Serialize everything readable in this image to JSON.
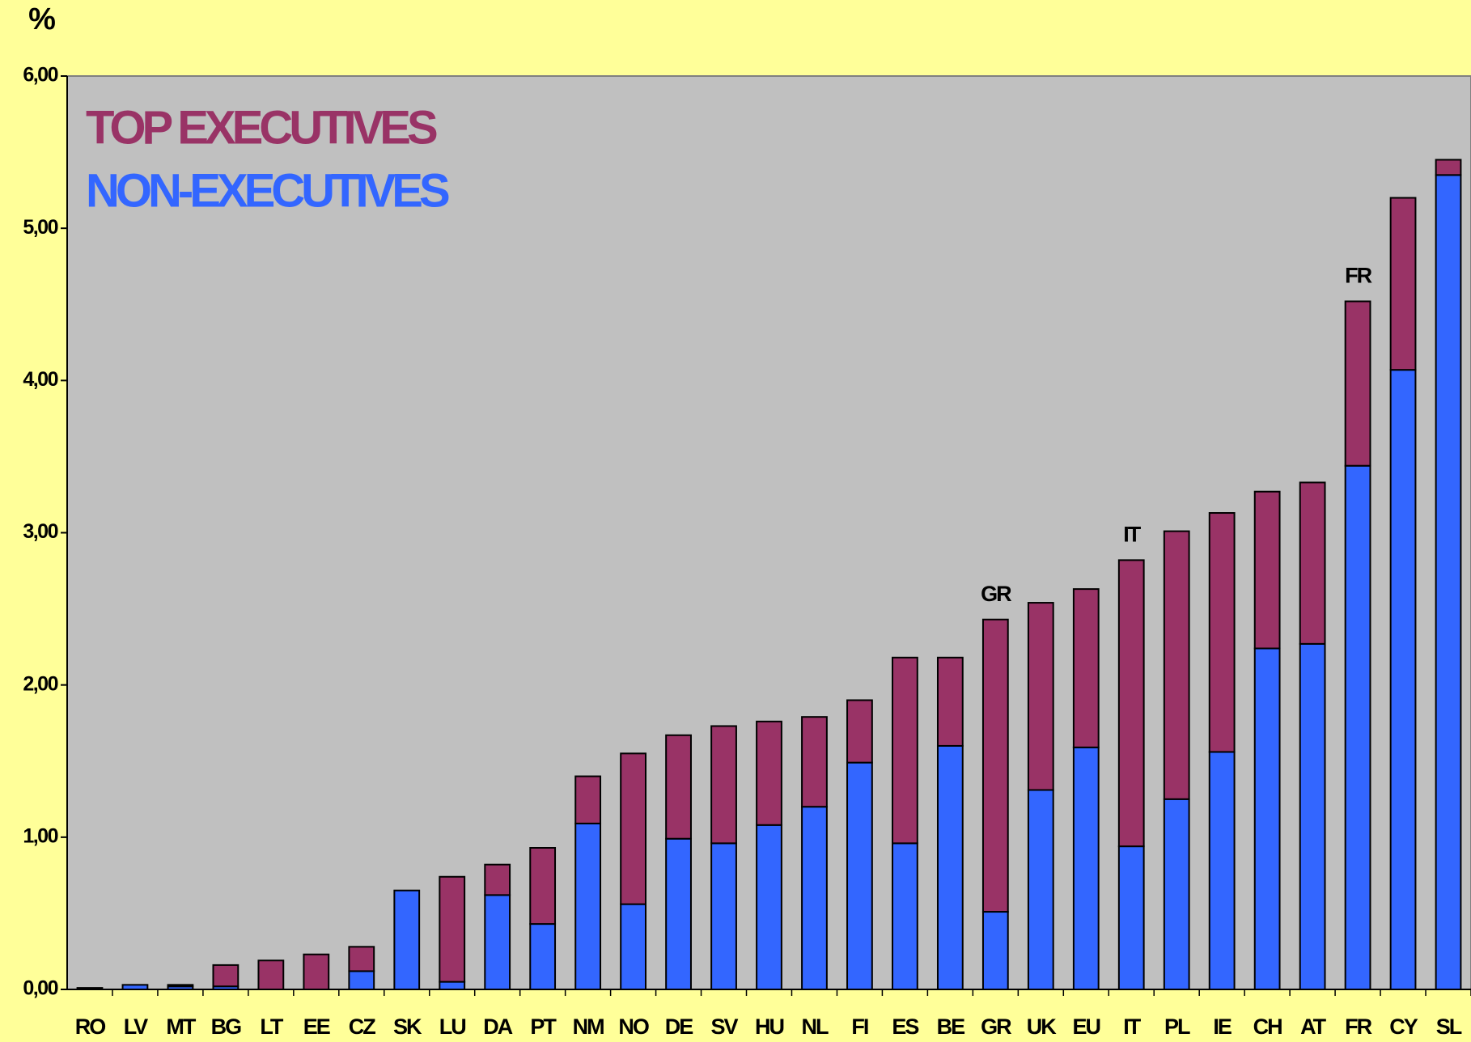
{
  "chart_data": {
    "type": "stacked-bar",
    "y_label": "%",
    "categories": [
      "RO",
      "LV",
      "MT",
      "BG",
      "LT",
      "EE",
      "CZ",
      "SK",
      "LU",
      "DA",
      "PT",
      "NM",
      "NO",
      "DE",
      "SV",
      "HU",
      "NL",
      "FI",
      "ES",
      "BE",
      "GR",
      "UK",
      "EU",
      "IT",
      "PL",
      "IE",
      "CH",
      "AT",
      "FR",
      "CY",
      "SL"
    ],
    "series": [
      {
        "name": "NON-EXECUTIVES",
        "color": "#3366ff",
        "values": [
          0,
          0.03,
          0.02,
          0.02,
          0,
          0,
          0.12,
          0.65,
          0.05,
          0.62,
          0.43,
          1.09,
          0.56,
          0.99,
          0.96,
          1.08,
          1.2,
          1.49,
          0.96,
          1.6,
          0.51,
          1.31,
          1.59,
          0.94,
          1.25,
          1.56,
          2.24,
          2.27,
          3.44,
          4.07,
          5.35
        ]
      },
      {
        "name": "TOP EXECUTIVES",
        "color": "#993366",
        "values": [
          0.01,
          0,
          0.01,
          0.14,
          0.19,
          0.23,
          0.16,
          0,
          0.69,
          0.2,
          0.5,
          0.31,
          0.99,
          0.68,
          0.77,
          0.68,
          0.59,
          0.41,
          1.22,
          0.58,
          1.92,
          1.23,
          1.04,
          1.88,
          1.76,
          1.57,
          1.03,
          1.06,
          1.08,
          1.13,
          0.1
        ]
      }
    ],
    "annotations": [
      "GR",
      "IT",
      "FR"
    ],
    "ylim": [
      0,
      6
    ],
    "yticks": [
      {
        "value": 0,
        "label": "0,00"
      },
      {
        "value": 1,
        "label": "1,00"
      },
      {
        "value": 2,
        "label": "2,00"
      },
      {
        "value": 3,
        "label": "3,00"
      },
      {
        "value": 4,
        "label": "4,00"
      },
      {
        "value": 5,
        "label": "5,00"
      },
      {
        "value": 6,
        "label": "6,00"
      }
    ]
  }
}
